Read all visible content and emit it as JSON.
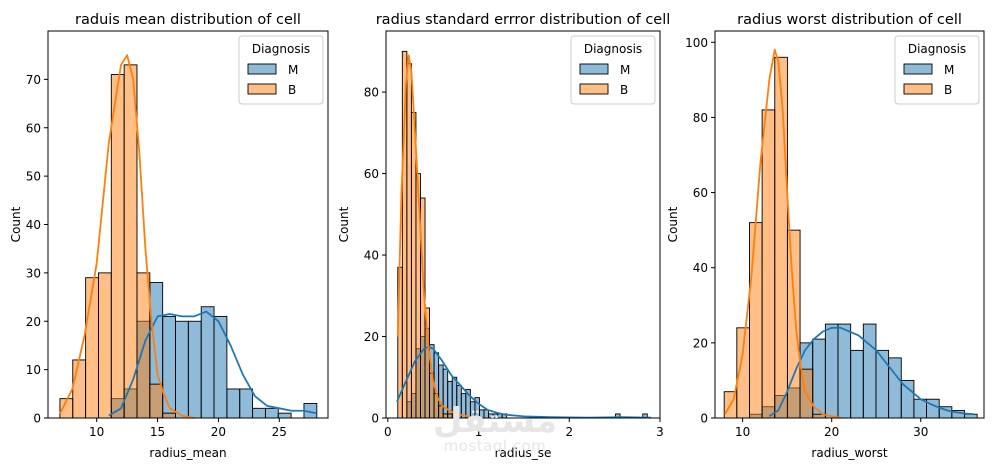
{
  "colors": {
    "M": "#1f77b4",
    "B": "#ff7f0e"
  },
  "watermark": {
    "arabic": "مستقل",
    "latin": "mostaql.com"
  },
  "chart_data": [
    {
      "type": "histogram",
      "title": "raduis mean distribution of cell",
      "xlabel": "radius_mean",
      "ylabel": "Count",
      "xlim": [
        6,
        29
      ],
      "ylim": [
        0,
        80
      ],
      "xticks": [
        10,
        15,
        20,
        25
      ],
      "yticks": [
        0,
        10,
        20,
        30,
        40,
        50,
        60,
        70
      ],
      "legend": {
        "title": "Diagnosis",
        "placement": "top-right",
        "entries": [
          "M",
          "B"
        ]
      },
      "bin_edges": [
        6.98,
        8.035,
        9.09,
        10.145,
        11.2,
        12.255,
        13.31,
        14.365,
        15.42,
        16.475,
        17.53,
        18.585,
        19.64,
        20.695,
        21.75,
        22.805,
        23.86,
        24.915,
        25.97,
        27.025,
        28.08
      ],
      "series": [
        {
          "name": "M",
          "counts": [
            0,
            0,
            0,
            0,
            4,
            6,
            20,
            28,
            21,
            20,
            20,
            23,
            21,
            6,
            6,
            2,
            2,
            1,
            0,
            3
          ],
          "kde": [
            [
              11,
              0.5
            ],
            [
              12,
              2
            ],
            [
              13,
              8
            ],
            [
              14,
              16
            ],
            [
              15,
              21
            ],
            [
              16,
              21.5
            ],
            [
              17,
              21
            ],
            [
              18,
              21
            ],
            [
              19,
              22
            ],
            [
              20,
              20
            ],
            [
              21,
              15
            ],
            [
              22,
              9
            ],
            [
              23,
              4.5
            ],
            [
              24,
              2.5
            ],
            [
              25,
              2
            ],
            [
              26,
              1.5
            ],
            [
              27,
              1.5
            ],
            [
              28,
              1
            ]
          ]
        },
        {
          "name": "B",
          "counts": [
            4,
            12,
            29,
            30,
            71,
            73,
            30,
            7,
            1,
            0,
            0,
            0,
            0,
            0,
            0,
            0,
            0,
            0,
            0,
            0
          ],
          "kde": [
            [
              7,
              1
            ],
            [
              8,
              6
            ],
            [
              9,
              17
            ],
            [
              10,
              32
            ],
            [
              11,
              57
            ],
            [
              12,
              73
            ],
            [
              12.5,
              75
            ],
            [
              13,
              70
            ],
            [
              13.5,
              55
            ],
            [
              14,
              35
            ],
            [
              14.5,
              20
            ],
            [
              15,
              9
            ],
            [
              15.5,
              5
            ],
            [
              16,
              2
            ],
            [
              17,
              0.5
            ],
            [
              18,
              0
            ]
          ]
        }
      ]
    },
    {
      "type": "histogram",
      "title": "radius standard errror distribution of cell",
      "xlabel": "radius_se",
      "ylabel": "Count",
      "xlim": [
        -0.02,
        3.0
      ],
      "ylim": [
        0,
        95
      ],
      "xticks": [
        0,
        1,
        2,
        3
      ],
      "yticks": [
        0,
        20,
        40,
        60,
        80
      ],
      "legend": {
        "title": "Diagnosis",
        "placement": "top-right",
        "entries": [
          "M",
          "B"
        ]
      },
      "bin_edges": [
        0.11,
        0.16,
        0.21,
        0.26,
        0.31,
        0.36,
        0.41,
        0.46,
        0.51,
        0.56,
        0.61,
        0.66,
        0.71,
        0.76,
        0.81,
        0.86,
        0.91,
        0.96,
        1.01,
        1.06,
        1.11,
        1.16,
        1.21,
        1.26,
        1.31,
        1.36,
        1.41,
        1.46,
        1.51,
        1.56,
        1.61,
        1.66,
        1.71,
        1.76,
        1.81,
        1.86,
        1.91,
        1.96,
        2.01,
        2.06,
        2.11,
        2.16,
        2.21,
        2.26,
        2.31,
        2.36,
        2.41,
        2.46,
        2.51,
        2.56,
        2.61,
        2.66,
        2.71,
        2.76,
        2.81,
        2.86,
        2.91
      ],
      "series": [
        {
          "name": "M",
          "counts": [
            0,
            0,
            4,
            6,
            17,
            20,
            22,
            18,
            16,
            13,
            12,
            9,
            10,
            8,
            6,
            7,
            4,
            5,
            2,
            2,
            1,
            1,
            1,
            1,
            0,
            0,
            0,
            0,
            0,
            0,
            0,
            0,
            0,
            0,
            0,
            0,
            0,
            0,
            0,
            0,
            0,
            0,
            0,
            0,
            0,
            0,
            0,
            0,
            1,
            0,
            0,
            0,
            0,
            0,
            1,
            0
          ],
          "kde": [
            [
              0.1,
              4
            ],
            [
              0.2,
              9
            ],
            [
              0.3,
              14
            ],
            [
              0.4,
              17
            ],
            [
              0.45,
              17.5
            ],
            [
              0.5,
              17
            ],
            [
              0.6,
              14
            ],
            [
              0.7,
              10.5
            ],
            [
              0.8,
              8
            ],
            [
              0.9,
              5.5
            ],
            [
              1.0,
              3.5
            ],
            [
              1.1,
              2
            ],
            [
              1.2,
              1.3
            ],
            [
              1.3,
              0.8
            ],
            [
              1.5,
              0.4
            ],
            [
              1.8,
              0.2
            ],
            [
              2.2,
              0.1
            ],
            [
              2.6,
              0.2
            ],
            [
              2.9,
              0.1
            ]
          ]
        },
        {
          "name": "B",
          "counts": [
            37,
            90,
            87,
            75,
            60,
            54,
            27,
            11,
            6,
            3,
            1,
            1,
            0,
            0,
            0,
            0,
            0,
            0,
            0,
            0,
            0,
            0,
            0,
            0,
            0,
            0,
            0,
            0,
            0,
            0,
            0,
            0,
            0,
            0,
            0,
            0,
            0,
            0,
            0,
            0,
            0,
            0,
            0,
            0,
            0,
            0,
            0,
            0,
            0,
            0,
            0,
            0,
            0,
            0,
            0,
            0
          ],
          "kde": [
            [
              0.11,
              20
            ],
            [
              0.15,
              55
            ],
            [
              0.2,
              82
            ],
            [
              0.23,
              89
            ],
            [
              0.26,
              85
            ],
            [
              0.3,
              70
            ],
            [
              0.35,
              50
            ],
            [
              0.4,
              30
            ],
            [
              0.45,
              17
            ],
            [
              0.5,
              9
            ],
            [
              0.55,
              5
            ],
            [
              0.6,
              3
            ],
            [
              0.7,
              1.5
            ],
            [
              0.8,
              0.8
            ],
            [
              0.9,
              0.3
            ]
          ]
        }
      ]
    },
    {
      "type": "histogram",
      "title": "radius worst distribution of cell",
      "xlabel": "radius_worst",
      "ylabel": "Count",
      "xlim": [
        6.9,
        37.1
      ],
      "ylim": [
        0,
        103
      ],
      "xticks": [
        10,
        20,
        30
      ],
      "yticks": [
        0,
        20,
        40,
        60,
        80,
        100
      ],
      "legend": {
        "title": "Diagnosis",
        "placement": "top-right",
        "entries": [
          "M",
          "B"
        ]
      },
      "bin_edges": [
        7.93,
        9.35,
        10.77,
        12.19,
        13.61,
        15.03,
        16.45,
        17.87,
        19.29,
        20.71,
        22.13,
        23.55,
        24.97,
        26.39,
        27.81,
        29.23,
        30.65,
        32.07,
        33.49,
        34.91,
        36.33
      ],
      "series": [
        {
          "name": "M",
          "counts": [
            0,
            0,
            1,
            3,
            6,
            8,
            20,
            21,
            25,
            25,
            18,
            25,
            18,
            16,
            10,
            5,
            5,
            3,
            2,
            1
          ],
          "kde": [
            [
              13,
              0.5
            ],
            [
              14,
              2
            ],
            [
              15,
              7
            ],
            [
              16,
              13
            ],
            [
              17,
              18
            ],
            [
              18,
              21
            ],
            [
              19,
              23
            ],
            [
              20,
              24
            ],
            [
              21,
              24
            ],
            [
              22,
              23
            ],
            [
              23,
              22
            ],
            [
              24,
              20
            ],
            [
              25,
              18
            ],
            [
              26,
              15
            ],
            [
              27,
              12
            ],
            [
              28,
              9
            ],
            [
              29,
              7
            ],
            [
              30,
              5
            ],
            [
              31,
              3.8
            ],
            [
              32,
              2.8
            ],
            [
              33,
              2
            ],
            [
              34,
              1.5
            ],
            [
              35,
              1.2
            ],
            [
              36,
              1
            ]
          ]
        },
        {
          "name": "B",
          "counts": [
            7,
            24,
            52,
            82,
            96,
            50,
            13,
            1,
            0,
            0,
            0,
            0,
            0,
            0,
            0,
            0,
            0,
            0,
            0,
            0
          ],
          "kde": [
            [
              8,
              1
            ],
            [
              9,
              5
            ],
            [
              10,
              17
            ],
            [
              11,
              38
            ],
            [
              12,
              68
            ],
            [
              13,
              90
            ],
            [
              13.6,
              98
            ],
            [
              14,
              95
            ],
            [
              14.5,
              82
            ],
            [
              15,
              60
            ],
            [
              15.5,
              40
            ],
            [
              16,
              24
            ],
            [
              16.5,
              14
            ],
            [
              17,
              7
            ],
            [
              18,
              3
            ],
            [
              19,
              1
            ],
            [
              20,
              0.5
            ],
            [
              21,
              0
            ]
          ]
        }
      ]
    }
  ]
}
